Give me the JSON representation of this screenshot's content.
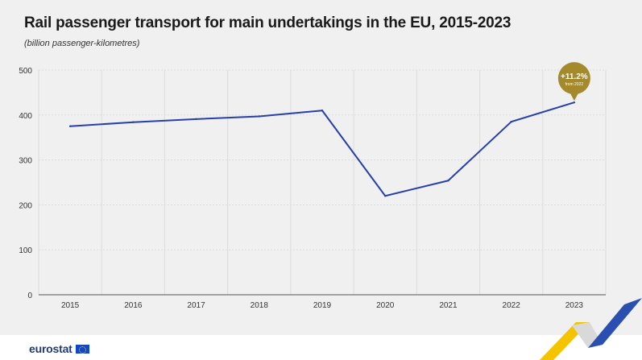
{
  "header": {
    "title": "Rail passenger transport for main undertakings in the EU, 2015-2023",
    "subtitle": "(billion passenger-kilometres)"
  },
  "footer": {
    "logo_text": "eurostat"
  },
  "colors": {
    "line": "#2740a8",
    "callout": "#a58a2c",
    "grid": "#dcdcdc",
    "background": "#f0f0f0"
  },
  "chart_data": {
    "type": "line",
    "title": "Rail passenger transport for main undertakings in the EU, 2015-2023",
    "subtitle": "(billion passenger-kilometres)",
    "xlabel": "",
    "ylabel": "",
    "categories": [
      "2015",
      "2016",
      "2017",
      "2018",
      "2019",
      "2020",
      "2021",
      "2022",
      "2023"
    ],
    "series": [
      {
        "values": [
          375,
          384,
          391,
          397,
          410,
          220,
          254,
          385,
          428
        ]
      }
    ],
    "ylim": [
      0,
      500
    ],
    "yticks": [
      0,
      100,
      200,
      300,
      400,
      500
    ],
    "grid": true,
    "annotation": {
      "category": "2023",
      "value_text": "+11.2%",
      "note_text": "from 2022"
    }
  }
}
